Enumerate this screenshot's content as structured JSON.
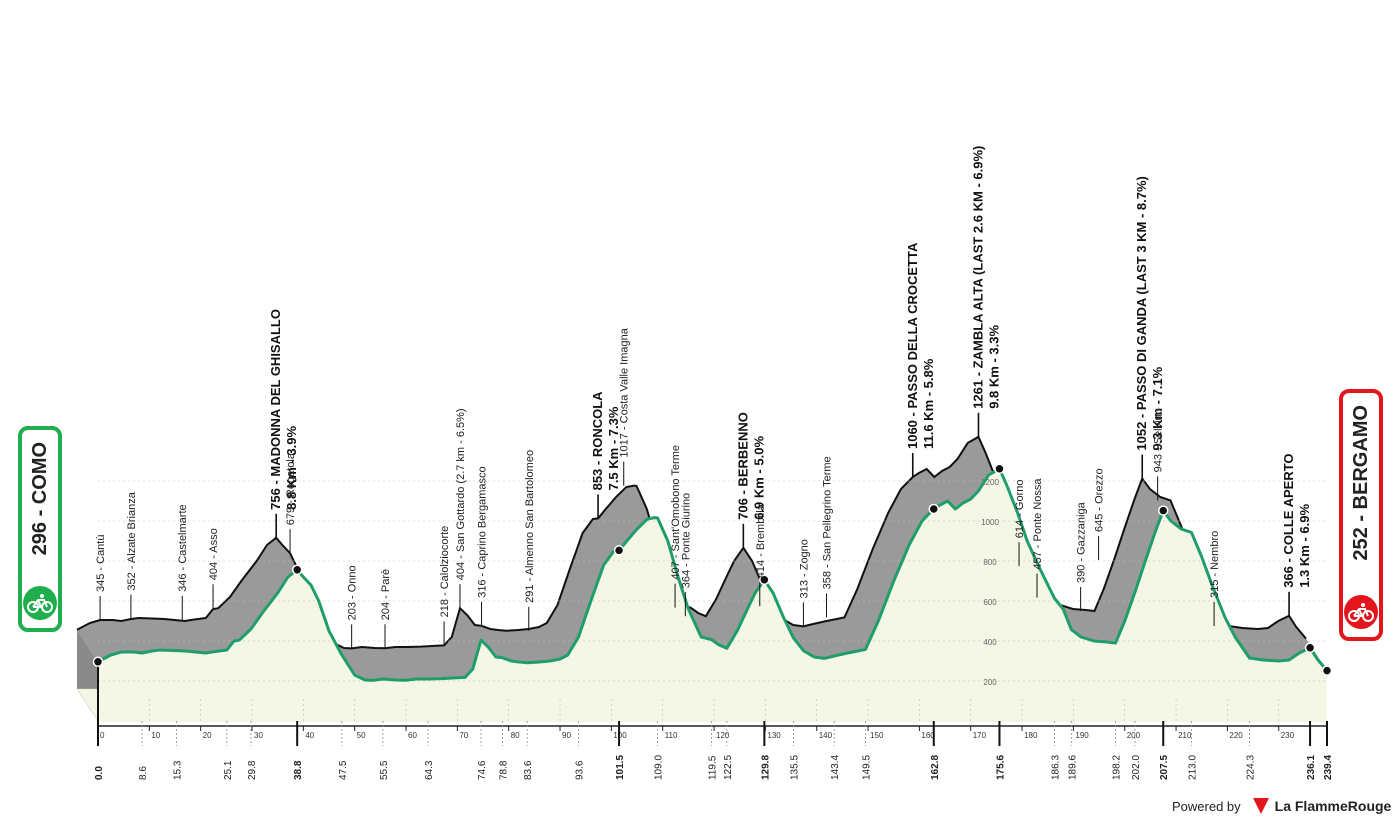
{
  "chart_data": {
    "type": "area",
    "title": "",
    "xlabel": "",
    "ylabel": "",
    "xlim": [
      0,
      239.4
    ],
    "ylim": [
      0,
      1300
    ],
    "x_ticks": [
      0,
      10,
      20,
      30,
      40,
      50,
      60,
      70,
      80,
      90,
      100,
      110,
      120,
      130,
      140,
      150,
      160,
      170,
      180,
      190,
      200,
      210,
      220,
      230
    ],
    "y_ticks": [
      200,
      400,
      600,
      800,
      1000,
      1200
    ],
    "grid": true,
    "colors": {
      "fill": "#f4f6e6",
      "shade": "#9a9a9a",
      "route": "#1f9e6a",
      "climb_marker": "#000000"
    },
    "series": [
      {
        "values": [
          [
            0.0,
            296
          ],
          [
            2.5,
            330
          ],
          [
            4.5,
            345
          ],
          [
            7.0,
            345
          ],
          [
            8.6,
            340
          ],
          [
            10.5,
            350
          ],
          [
            12.0,
            355
          ],
          [
            15.3,
            352
          ],
          [
            17.0,
            350
          ],
          [
            19.0,
            345
          ],
          [
            21.0,
            340
          ],
          [
            22.5,
            346
          ],
          [
            25.1,
            355
          ],
          [
            26.5,
            400
          ],
          [
            27.5,
            404
          ],
          [
            29.8,
            460
          ],
          [
            32.0,
            540
          ],
          [
            35.0,
            640
          ],
          [
            37.0,
            720
          ],
          [
            38.8,
            756
          ],
          [
            40.0,
            720
          ],
          [
            41.5,
            679
          ],
          [
            43.0,
            600
          ],
          [
            45.0,
            450
          ],
          [
            47.5,
            330
          ],
          [
            50.0,
            230
          ],
          [
            52.0,
            205
          ],
          [
            53.5,
            203
          ],
          [
            55.5,
            210
          ],
          [
            58.0,
            205
          ],
          [
            60.0,
            204
          ],
          [
            62.0,
            210
          ],
          [
            64.3,
            210
          ],
          [
            67.0,
            212
          ],
          [
            70.0,
            216
          ],
          [
            71.5,
            218
          ],
          [
            73.0,
            260
          ],
          [
            74.6,
            404
          ],
          [
            76.0,
            370
          ],
          [
            77.5,
            320
          ],
          [
            78.8,
            316
          ],
          [
            80.5,
            300
          ],
          [
            82.0,
            295
          ],
          [
            83.6,
            291
          ],
          [
            86.0,
            295
          ],
          [
            88.0,
            300
          ],
          [
            90.0,
            310
          ],
          [
            91.5,
            330
          ],
          [
            93.6,
            420
          ],
          [
            96.0,
            600
          ],
          [
            98.5,
            780
          ],
          [
            100.5,
            850
          ],
          [
            101.5,
            853
          ],
          [
            103.0,
            900
          ],
          [
            105.0,
            960
          ],
          [
            107.0,
            1010
          ],
          [
            108.5,
            1017
          ],
          [
            109.0,
            1015
          ],
          [
            111.0,
            900
          ],
          [
            113.0,
            720
          ],
          [
            115.0,
            560
          ],
          [
            117.5,
            420
          ],
          [
            119.5,
            407
          ],
          [
            121.0,
            380
          ],
          [
            122.5,
            364
          ],
          [
            124.5,
            450
          ],
          [
            126.5,
            560
          ],
          [
            128.0,
            640
          ],
          [
            129.8,
            706
          ],
          [
            131.5,
            640
          ],
          [
            133.5,
            520
          ],
          [
            135.5,
            414
          ],
          [
            137.5,
            350
          ],
          [
            139.5,
            320
          ],
          [
            141.5,
            313
          ],
          [
            143.4,
            325
          ],
          [
            146.0,
            340
          ],
          [
            148.0,
            350
          ],
          [
            149.5,
            358
          ],
          [
            152.0,
            500
          ],
          [
            155.0,
            700
          ],
          [
            158.0,
            880
          ],
          [
            160.5,
            1000
          ],
          [
            162.8,
            1060
          ],
          [
            164.0,
            1080
          ],
          [
            165.5,
            1100
          ],
          [
            167.0,
            1060
          ],
          [
            168.5,
            1090
          ],
          [
            170.0,
            1110
          ],
          [
            171.5,
            1150
          ],
          [
            173.5,
            1230
          ],
          [
            175.6,
            1261
          ],
          [
            177.0,
            1180
          ],
          [
            179.0,
            1050
          ],
          [
            181.0,
            900
          ],
          [
            183.5,
            760
          ],
          [
            186.3,
            614
          ],
          [
            188.0,
            560
          ],
          [
            189.6,
            457
          ],
          [
            191.5,
            420
          ],
          [
            194.0,
            400
          ],
          [
            196.5,
            395
          ],
          [
            198.2,
            390
          ],
          [
            200.0,
            500
          ],
          [
            202.0,
            645
          ],
          [
            204.0,
            800
          ],
          [
            206.0,
            950
          ],
          [
            207.5,
            1052
          ],
          [
            209.0,
            1000
          ],
          [
            211.0,
            960
          ],
          [
            213.0,
            943
          ],
          [
            215.0,
            820
          ],
          [
            217.0,
            680
          ],
          [
            219.5,
            520
          ],
          [
            221.5,
            420
          ],
          [
            224.3,
            315
          ],
          [
            227.0,
            305
          ],
          [
            230.0,
            300
          ],
          [
            232.0,
            305
          ],
          [
            234.0,
            340
          ],
          [
            236.1,
            366
          ],
          [
            237.5,
            310
          ],
          [
            239.4,
            252
          ]
        ]
      }
    ],
    "km_labels": [
      {
        "km": 0.0,
        "label": "0.0",
        "major": true
      },
      {
        "km": 8.6,
        "label": "8.6",
        "major": false
      },
      {
        "km": 15.3,
        "label": "15.3",
        "major": false
      },
      {
        "km": 25.1,
        "label": "25.1",
        "major": false
      },
      {
        "km": 29.8,
        "label": "29.8",
        "major": false
      },
      {
        "km": 38.8,
        "label": "38.8",
        "major": true
      },
      {
        "km": 47.5,
        "label": "47.5",
        "major": false
      },
      {
        "km": 55.5,
        "label": "55.5",
        "major": false
      },
      {
        "km": 64.3,
        "label": "64.3",
        "major": false
      },
      {
        "km": 74.6,
        "label": "74.6",
        "major": false
      },
      {
        "km": 78.8,
        "label": "78.8",
        "major": false
      },
      {
        "km": 83.6,
        "label": "83.6",
        "major": false
      },
      {
        "km": 93.6,
        "label": "93.6",
        "major": false
      },
      {
        "km": 101.5,
        "label": "101.5",
        "major": true
      },
      {
        "km": 109.0,
        "label": "109.0",
        "major": false
      },
      {
        "km": 119.5,
        "label": "119.5",
        "major": false
      },
      {
        "km": 122.5,
        "label": "122.5",
        "major": false
      },
      {
        "km": 129.8,
        "label": "129.8",
        "major": true
      },
      {
        "km": 135.5,
        "label": "135.5",
        "major": false
      },
      {
        "km": 143.4,
        "label": "143.4",
        "major": false
      },
      {
        "km": 149.5,
        "label": "149.5",
        "major": false
      },
      {
        "km": 162.8,
        "label": "162.8",
        "major": true
      },
      {
        "km": 175.6,
        "label": "175.6",
        "major": true
      },
      {
        "km": 186.3,
        "label": "186.3",
        "major": false
      },
      {
        "km": 189.6,
        "label": "189.6",
        "major": false
      },
      {
        "km": 198.2,
        "label": "198.2",
        "major": false
      },
      {
        "km": 202.0,
        "label": "202.0",
        "major": false
      },
      {
        "km": 207.5,
        "label": "207.5",
        "major": true
      },
      {
        "km": 213.0,
        "label": "213.0",
        "major": false
      },
      {
        "km": 224.3,
        "label": "224.3",
        "major": false
      },
      {
        "km": 236.1,
        "label": "236.1",
        "major": true
      },
      {
        "km": 239.4,
        "label": "239.4",
        "major": true
      }
    ],
    "annotations": [
      {
        "km": 4.5,
        "alt": 345,
        "text": "345 - Cantù",
        "kind": "place"
      },
      {
        "km": 10.5,
        "alt": 352,
        "text": "352 - Alzate Brianza",
        "kind": "place"
      },
      {
        "km": 20.5,
        "alt": 346,
        "text": "346 - Castelmarte",
        "kind": "place"
      },
      {
        "km": 26.5,
        "alt": 404,
        "text": "404 - Asso",
        "kind": "place"
      },
      {
        "km": 38.8,
        "alt": 756,
        "text": "756 - MADONNA DEL GHISALLO",
        "sub": "8.8 Km - 3.9%",
        "kind": "climb"
      },
      {
        "km": 41.5,
        "alt": 679,
        "text": "679 - Regatola",
        "kind": "place"
      },
      {
        "km": 53.5,
        "alt": 203,
        "text": "203 - Onno",
        "kind": "place"
      },
      {
        "km": 60.0,
        "alt": 204,
        "text": "204 - Parè",
        "kind": "place"
      },
      {
        "km": 71.5,
        "alt": 218,
        "text": "218 - Calolziocorte",
        "kind": "place"
      },
      {
        "km": 74.6,
        "alt": 404,
        "text": "404 - San Gottardo (2.7 km - 6.5%)",
        "kind": "place"
      },
      {
        "km": 78.8,
        "alt": 316,
        "text": "316 - Caprino Bergamasco",
        "kind": "place"
      },
      {
        "km": 88.0,
        "alt": 291,
        "text": "291 - Almenno San Bartolomeo",
        "kind": "place"
      },
      {
        "km": 101.5,
        "alt": 853,
        "text": "853 - RONCOLA",
        "sub": "7.5 Km - 7.3%",
        "kind": "climb"
      },
      {
        "km": 106.5,
        "alt": 1017,
        "text": "1017 - Costa Valle Imagna",
        "kind": "place"
      },
      {
        "km": 116.5,
        "alt": 407,
        "text": "407 - Sant'Omobono Terme",
        "kind": "place"
      },
      {
        "km": 118.5,
        "alt": 364,
        "text": "364 - Ponte Giurino",
        "kind": "place"
      },
      {
        "km": 129.8,
        "alt": 706,
        "text": "706 - BERBENNO",
        "sub": "6.9 Km - 5.0%",
        "kind": "climb"
      },
      {
        "km": 133.0,
        "alt": 414,
        "text": "414 - Brembilla",
        "kind": "place"
      },
      {
        "km": 141.5,
        "alt": 313,
        "text": "313 - Zogno",
        "kind": "place"
      },
      {
        "km": 146.0,
        "alt": 358,
        "text": "358 - San Pellegrino Terme",
        "kind": "place"
      },
      {
        "km": 162.8,
        "alt": 1060,
        "text": "1060 - PASSO DELLA CROCETTA",
        "sub": "11.6 Km - 5.8%",
        "kind": "climb"
      },
      {
        "km": 175.6,
        "alt": 1261,
        "text": "1261 - ZAMBLA ALTA (LAST 2.6 KM - 6.9%)",
        "sub": "9.8 Km - 3.3%",
        "kind": "climb"
      },
      {
        "km": 183.5,
        "alt": 614,
        "text": "614 - Gorno",
        "kind": "place"
      },
      {
        "km": 187.0,
        "alt": 457,
        "text": "457 - Ponte Nossa",
        "kind": "place"
      },
      {
        "km": 195.5,
        "alt": 390,
        "text": "390 - Gazzaniga",
        "kind": "place"
      },
      {
        "km": 199.0,
        "alt": 645,
        "text": "645 - Orezzo",
        "kind": "place"
      },
      {
        "km": 207.5,
        "alt": 1052,
        "text": "1052 - PASSO DI GANDA (LAST 3 KM - 8.7%)",
        "sub": "9.3 Km - 7.1%",
        "kind": "climb"
      },
      {
        "km": 210.5,
        "alt": 943,
        "text": "943 - Selvino",
        "kind": "place"
      },
      {
        "km": 221.5,
        "alt": 315,
        "text": "315 - Nembro",
        "kind": "place"
      },
      {
        "km": 236.1,
        "alt": 366,
        "text": "366 - COLLE APERTO",
        "sub": "1.3 Km - 6.9%",
        "kind": "climb"
      }
    ]
  },
  "start": {
    "altitude": "296",
    "name": "COMO",
    "label": "296 - COMO"
  },
  "finish": {
    "altitude": "252",
    "name": "BERGAMO",
    "label": "252 - BERGAMO"
  },
  "footer": {
    "powered_by": "Powered by",
    "brand": "La FlammeRouge"
  }
}
